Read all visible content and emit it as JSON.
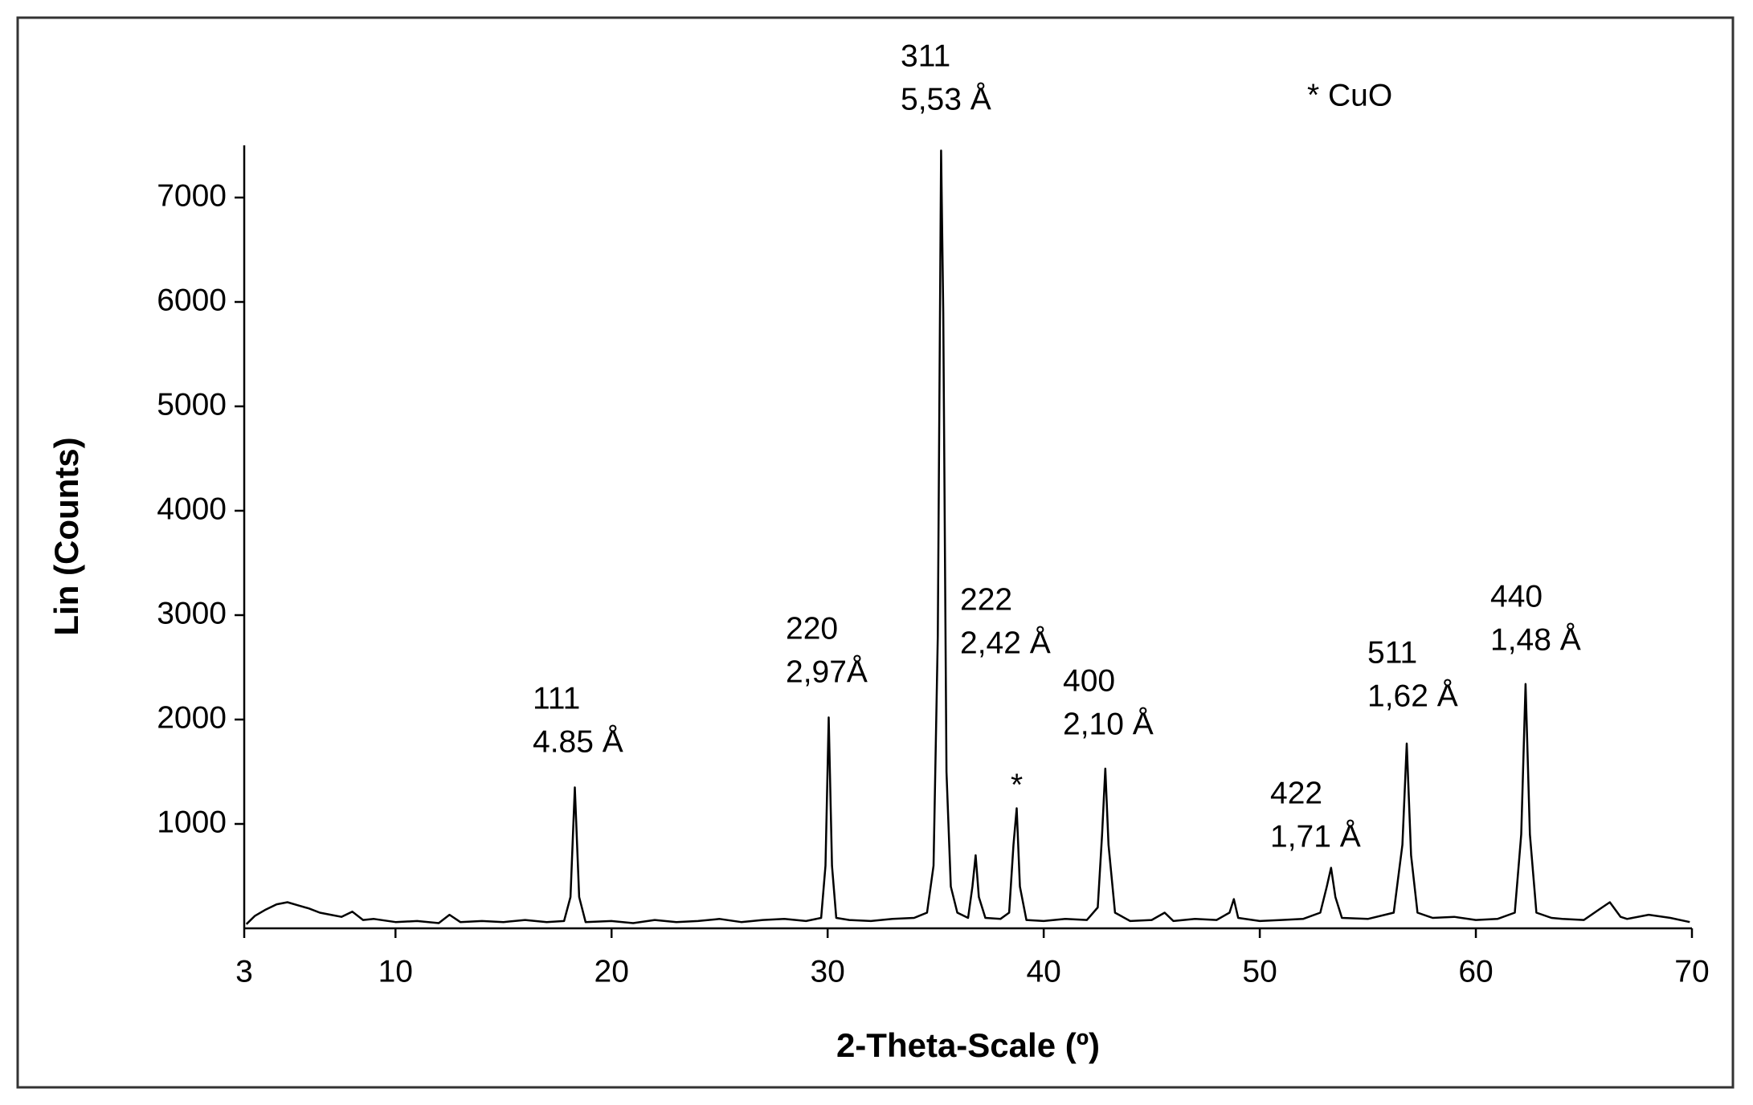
{
  "chart_data": {
    "type": "line",
    "xlabel": "2-Theta-Scale (º)",
    "ylabel": "Lin (Counts)",
    "color": "#000000",
    "xlim": [
      3,
      70
    ],
    "xticks": [
      3,
      10,
      20,
      30,
      40,
      50,
      60,
      70
    ],
    "ylim": [
      0,
      7500
    ],
    "yticks": [
      1000,
      2000,
      3000,
      4000,
      5000,
      6000,
      7000
    ],
    "x": [
      3.1,
      3.5,
      4,
      4.5,
      5,
      5.5,
      6,
      6.5,
      7,
      7.5,
      8,
      8.5,
      9,
      10,
      11,
      12,
      12.5,
      13,
      14,
      15,
      16,
      17,
      17.8,
      18.1,
      18.3,
      18.5,
      18.8,
      20,
      21,
      22,
      23,
      24,
      25,
      26,
      27,
      28,
      29,
      29.7,
      29.9,
      30.05,
      30.2,
      30.4,
      31,
      32,
      33,
      34,
      34.6,
      34.9,
      35.1,
      35.25,
      35.35,
      35.5,
      35.7,
      36,
      36.5,
      36.7,
      36.85,
      37,
      37.3,
      38,
      38.4,
      38.6,
      38.75,
      38.9,
      39.2,
      40,
      41,
      42,
      42.5,
      42.7,
      42.85,
      43,
      43.3,
      44,
      45,
      45.6,
      46,
      47,
      48,
      48.6,
      48.8,
      49,
      50,
      51,
      52,
      52.8,
      53.1,
      53.3,
      53.5,
      53.8,
      55,
      56.2,
      56.6,
      56.8,
      57,
      57.3,
      58,
      59,
      60,
      61,
      61.8,
      62.1,
      62.3,
      62.5,
      62.8,
      63.5,
      64,
      65,
      65.7,
      66.2,
      66.7,
      67,
      68,
      69,
      69.9
    ],
    "values": [
      40,
      120,
      180,
      230,
      250,
      220,
      190,
      150,
      130,
      110,
      160,
      80,
      90,
      60,
      70,
      50,
      130,
      60,
      70,
      60,
      80,
      60,
      70,
      300,
      1350,
      300,
      60,
      70,
      50,
      80,
      60,
      70,
      90,
      60,
      80,
      90,
      70,
      100,
      600,
      2020,
      600,
      100,
      80,
      70,
      90,
      100,
      150,
      600,
      2800,
      7450,
      5900,
      1500,
      400,
      150,
      100,
      400,
      700,
      300,
      100,
      90,
      150,
      800,
      1150,
      400,
      80,
      70,
      90,
      80,
      200,
      900,
      1530,
      800,
      150,
      70,
      80,
      150,
      70,
      90,
      80,
      150,
      280,
      100,
      70,
      80,
      90,
      150,
      400,
      580,
      300,
      100,
      90,
      150,
      800,
      1770,
      700,
      150,
      100,
      110,
      80,
      90,
      150,
      900,
      2340,
      900,
      150,
      100,
      90,
      80,
      180,
      250,
      110,
      90,
      130,
      100,
      60
    ],
    "annotations": [
      {
        "lines": [
          "111",
          "4.85 Å"
        ]
      },
      {
        "lines": [
          "220",
          "2,97Å"
        ]
      },
      {
        "lines": [
          "311",
          "5,53 Å"
        ]
      },
      {
        "lines": [
          "222",
          "2,42 Å"
        ]
      },
      {
        "lines": [
          "*"
        ]
      },
      {
        "lines": [
          "400",
          "2,10 Å"
        ]
      },
      {
        "lines": [
          "422",
          "1,71 Å"
        ]
      },
      {
        "lines": [
          "511",
          "1,62 Å"
        ]
      },
      {
        "lines": [
          "440",
          "1,48 Å"
        ]
      },
      {
        "lines": [
          "* CuO"
        ]
      }
    ]
  }
}
